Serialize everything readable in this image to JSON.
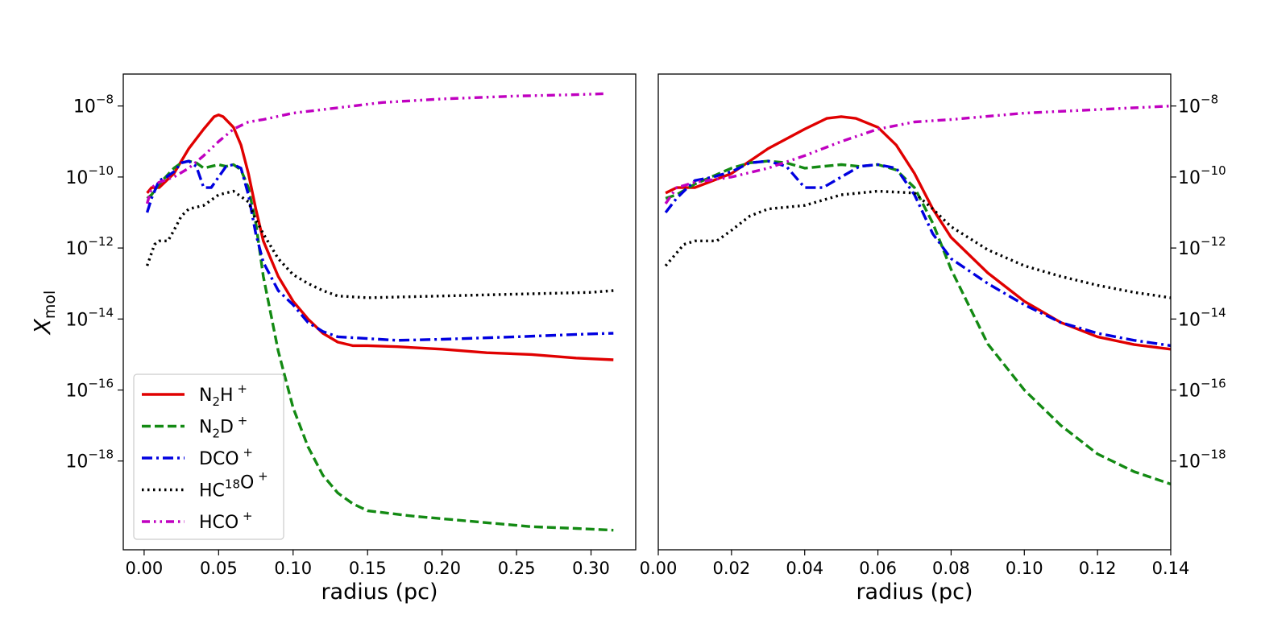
{
  "chart_data": [
    {
      "type": "line",
      "panel": "left",
      "xlabel": "radius (pc)",
      "ylabel": "X",
      "ylabel_sub": "mol",
      "xlim": [
        -0.014,
        0.33
      ],
      "ylim_log10": [
        -20.5,
        -7.1
      ],
      "yscale": "log",
      "xticks": [
        0.0,
        0.05,
        0.1,
        0.15,
        0.2,
        0.25,
        0.3
      ],
      "xtick_labels": [
        "0.00",
        "0.05",
        "0.10",
        "0.15",
        "0.20",
        "0.25",
        "0.30"
      ],
      "yticks_exp": [
        -8,
        -10,
        -12,
        -14,
        -16,
        -18
      ],
      "legend": "lower-left",
      "series": [
        {
          "name": "N2H+",
          "color": "#e00000",
          "style": "solid",
          "x": [
            0.002,
            0.005,
            0.01,
            0.02,
            0.03,
            0.04,
            0.047,
            0.05,
            0.053,
            0.06,
            0.065,
            0.07,
            0.075,
            0.08,
            0.09,
            0.1,
            0.11,
            0.12,
            0.13,
            0.14,
            0.15,
            0.17,
            0.2,
            0.23,
            0.26,
            0.29,
            0.315
          ],
          "log10_y": [
            -10.45,
            -10.3,
            -10.3,
            -9.9,
            -9.2,
            -8.65,
            -8.3,
            -8.25,
            -8.3,
            -8.6,
            -9.1,
            -9.9,
            -10.9,
            -11.8,
            -12.8,
            -13.5,
            -14.0,
            -14.4,
            -14.65,
            -14.75,
            -14.75,
            -14.78,
            -14.85,
            -14.95,
            -15.0,
            -15.1,
            -15.15
          ]
        },
        {
          "name": "N2D+",
          "color": "#138a13",
          "style": "dashed",
          "x": [
            0.002,
            0.005,
            0.01,
            0.02,
            0.025,
            0.03,
            0.035,
            0.04,
            0.045,
            0.05,
            0.055,
            0.06,
            0.065,
            0.07,
            0.075,
            0.08,
            0.09,
            0.1,
            0.11,
            0.12,
            0.13,
            0.14,
            0.15,
            0.18,
            0.22,
            0.26,
            0.29,
            0.315
          ],
          "log10_y": [
            -10.6,
            -10.5,
            -10.2,
            -9.75,
            -9.6,
            -9.55,
            -9.6,
            -9.75,
            -9.7,
            -9.65,
            -9.7,
            -9.65,
            -9.8,
            -10.3,
            -11.3,
            -12.8,
            -14.9,
            -16.5,
            -17.6,
            -18.4,
            -18.9,
            -19.2,
            -19.4,
            -19.55,
            -19.7,
            -19.85,
            -19.9,
            -19.95
          ]
        },
        {
          "name": "DCO+",
          "color": "#0000e0",
          "style": "dashdot",
          "x": [
            0.002,
            0.005,
            0.01,
            0.015,
            0.02,
            0.025,
            0.03,
            0.035,
            0.04,
            0.045,
            0.05,
            0.055,
            0.06,
            0.065,
            0.07,
            0.075,
            0.08,
            0.09,
            0.1,
            0.11,
            0.12,
            0.13,
            0.15,
            0.17,
            0.2,
            0.25,
            0.3,
            0.315
          ],
          "log10_y": [
            -11.0,
            -10.6,
            -10.1,
            -10.0,
            -9.85,
            -9.6,
            -9.55,
            -9.7,
            -10.3,
            -10.3,
            -10.0,
            -9.7,
            -9.65,
            -9.75,
            -10.5,
            -11.6,
            -12.4,
            -13.2,
            -13.6,
            -14.1,
            -14.35,
            -14.5,
            -14.55,
            -14.6,
            -14.57,
            -14.5,
            -14.42,
            -14.4
          ]
        },
        {
          "name": "HC18O+",
          "color": "#000000",
          "style": "dotted",
          "x": [
            0.002,
            0.007,
            0.01,
            0.016,
            0.02,
            0.025,
            0.03,
            0.04,
            0.05,
            0.06,
            0.07,
            0.075,
            0.08,
            0.09,
            0.1,
            0.11,
            0.12,
            0.13,
            0.15,
            0.17,
            0.2,
            0.25,
            0.3,
            0.315
          ],
          "log10_y": [
            -12.5,
            -11.9,
            -11.8,
            -11.8,
            -11.5,
            -11.1,
            -10.9,
            -10.8,
            -10.5,
            -10.4,
            -10.7,
            -11.2,
            -11.6,
            -12.3,
            -12.75,
            -13.0,
            -13.2,
            -13.35,
            -13.4,
            -13.38,
            -13.35,
            -13.3,
            -13.25,
            -13.2
          ]
        },
        {
          "name": "HCO+",
          "color": "#c000c0",
          "style": "dashdotdot",
          "x": [
            0.002,
            0.005,
            0.01,
            0.02,
            0.03,
            0.04,
            0.05,
            0.06,
            0.07,
            0.08,
            0.1,
            0.13,
            0.16,
            0.2,
            0.25,
            0.29,
            0.31
          ],
          "log10_y": [
            -10.75,
            -10.3,
            -10.15,
            -10.0,
            -9.75,
            -9.4,
            -9.0,
            -8.65,
            -8.45,
            -8.38,
            -8.2,
            -8.05,
            -7.9,
            -7.8,
            -7.72,
            -7.68,
            -7.65
          ]
        }
      ]
    },
    {
      "type": "line",
      "panel": "right",
      "xlabel": "radius (pc)",
      "xlim": [
        0.0,
        0.14
      ],
      "ylim_log10": [
        -20.5,
        -7.1
      ],
      "yscale": "log",
      "yaxis_position": "right",
      "xticks": [
        0.0,
        0.02,
        0.04,
        0.06,
        0.08,
        0.1,
        0.12,
        0.14
      ],
      "xtick_labels": [
        "0.00",
        "0.02",
        "0.04",
        "0.06",
        "0.08",
        "0.10",
        "0.12",
        "0.14"
      ],
      "yticks_exp": [
        -8,
        -10,
        -12,
        -14,
        -16,
        -18
      ],
      "series": [
        {
          "name": "N2H+",
          "color": "#e00000",
          "style": "solid",
          "x": [
            0.002,
            0.005,
            0.01,
            0.02,
            0.03,
            0.04,
            0.046,
            0.05,
            0.054,
            0.06,
            0.065,
            0.07,
            0.075,
            0.08,
            0.09,
            0.1,
            0.11,
            0.12,
            0.13,
            0.14
          ],
          "log10_y": [
            -10.45,
            -10.3,
            -10.3,
            -9.9,
            -9.2,
            -8.65,
            -8.35,
            -8.3,
            -8.35,
            -8.6,
            -9.1,
            -9.9,
            -10.9,
            -11.7,
            -12.7,
            -13.5,
            -14.1,
            -14.5,
            -14.72,
            -14.85
          ]
        },
        {
          "name": "N2D+",
          "color": "#138a13",
          "style": "dashed",
          "x": [
            0.002,
            0.005,
            0.01,
            0.02,
            0.025,
            0.03,
            0.035,
            0.04,
            0.045,
            0.05,
            0.055,
            0.06,
            0.065,
            0.07,
            0.075,
            0.08,
            0.09,
            0.1,
            0.11,
            0.12,
            0.13,
            0.14
          ],
          "log10_y": [
            -10.6,
            -10.5,
            -10.2,
            -9.75,
            -9.6,
            -9.55,
            -9.6,
            -9.75,
            -9.7,
            -9.65,
            -9.7,
            -9.65,
            -9.8,
            -10.3,
            -11.3,
            -12.6,
            -14.7,
            -16.0,
            -17.0,
            -17.8,
            -18.3,
            -18.65
          ]
        },
        {
          "name": "DCO+",
          "color": "#0000e0",
          "style": "dashdot",
          "x": [
            0.002,
            0.005,
            0.01,
            0.015,
            0.02,
            0.025,
            0.03,
            0.035,
            0.04,
            0.045,
            0.05,
            0.055,
            0.06,
            0.065,
            0.07,
            0.075,
            0.08,
            0.09,
            0.1,
            0.11,
            0.12,
            0.13,
            0.14
          ],
          "log10_y": [
            -11.0,
            -10.6,
            -10.1,
            -10.0,
            -9.85,
            -9.6,
            -9.55,
            -9.7,
            -10.3,
            -10.3,
            -10.0,
            -9.7,
            -9.65,
            -9.75,
            -10.5,
            -11.6,
            -12.3,
            -13.0,
            -13.6,
            -14.1,
            -14.4,
            -14.6,
            -14.75
          ]
        },
        {
          "name": "HC18O+",
          "color": "#000000",
          "style": "dotted",
          "x": [
            0.002,
            0.007,
            0.01,
            0.016,
            0.02,
            0.025,
            0.03,
            0.04,
            0.05,
            0.06,
            0.07,
            0.075,
            0.08,
            0.09,
            0.1,
            0.11,
            0.12,
            0.13,
            0.14
          ],
          "log10_y": [
            -12.5,
            -11.9,
            -11.8,
            -11.8,
            -11.5,
            -11.1,
            -10.9,
            -10.8,
            -10.5,
            -10.4,
            -10.45,
            -10.9,
            -11.4,
            -12.05,
            -12.5,
            -12.8,
            -13.05,
            -13.25,
            -13.4
          ]
        },
        {
          "name": "HCO+",
          "color": "#c000c0",
          "style": "dashdotdot",
          "x": [
            0.002,
            0.005,
            0.01,
            0.02,
            0.03,
            0.04,
            0.05,
            0.06,
            0.07,
            0.08,
            0.1,
            0.12,
            0.14
          ],
          "log10_y": [
            -10.75,
            -10.3,
            -10.15,
            -10.0,
            -9.75,
            -9.4,
            -9.0,
            -8.65,
            -8.45,
            -8.38,
            -8.2,
            -8.1,
            -8.0
          ]
        }
      ]
    }
  ],
  "legend": {
    "entries": [
      {
        "base": "N",
        "sub": "2",
        "mid": "H",
        "sup": "+",
        "color": "#e00000",
        "style": "solid"
      },
      {
        "base": "N",
        "sub": "2",
        "mid": "D",
        "sup": "+",
        "color": "#138a13",
        "style": "dashed"
      },
      {
        "base": "DCO",
        "sub": "",
        "mid": "",
        "sup": "+",
        "color": "#0000e0",
        "style": "dashdot"
      },
      {
        "base": "HC",
        "presup": "18",
        "mid": "O",
        "sup": "+",
        "color": "#000000",
        "style": "dotted"
      },
      {
        "base": "HCO",
        "sub": "",
        "mid": "",
        "sup": "+",
        "color": "#c000c0",
        "style": "dashdotdot"
      }
    ]
  }
}
